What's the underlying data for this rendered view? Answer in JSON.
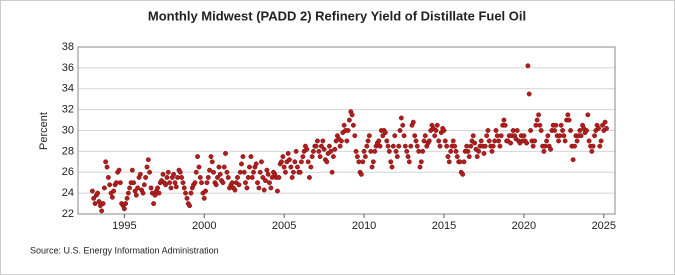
{
  "chart_data": {
    "type": "scatter",
    "title": "Monthly Midwest (PADD 2) Refinery Yield of Distillate Fuel Oil",
    "y_label": "Percent",
    "source": "Source: U.S. Energy Information Administration",
    "xlim": [
      1992.1,
      2025.7
    ],
    "xticks": [
      1995,
      2000,
      2005,
      2010,
      2015,
      2020,
      2025
    ],
    "ylim": [
      22,
      38
    ],
    "yticks": [
      22,
      24,
      26,
      28,
      30,
      32,
      34,
      36,
      38
    ],
    "grid": true,
    "series": [
      {
        "name": "Distillate Fuel Oil",
        "color": "#b01e1e",
        "x": [
          1993,
          1993.08,
          1993.17,
          1993.25,
          1993.33,
          1993.42,
          1993.5,
          1993.58,
          1993.67,
          1993.75,
          1993.83,
          1993.92,
          1994,
          1994.08,
          1994.17,
          1994.25,
          1994.33,
          1994.42,
          1994.5,
          1994.58,
          1994.67,
          1994.75,
          1994.83,
          1994.92,
          1995,
          1995.08,
          1995.17,
          1995.25,
          1995.33,
          1995.42,
          1995.5,
          1995.58,
          1995.67,
          1995.75,
          1995.83,
          1995.92,
          1996,
          1996.08,
          1996.17,
          1996.25,
          1996.33,
          1996.42,
          1996.5,
          1996.58,
          1996.67,
          1996.75,
          1996.83,
          1996.92,
          1997,
          1997.08,
          1997.17,
          1997.25,
          1997.33,
          1997.42,
          1997.5,
          1997.58,
          1997.67,
          1997.75,
          1997.83,
          1997.92,
          1998,
          1998.08,
          1998.17,
          1998.25,
          1998.33,
          1998.42,
          1998.5,
          1998.58,
          1998.67,
          1998.75,
          1998.83,
          1998.92,
          1999,
          1999.08,
          1999.17,
          1999.25,
          1999.33,
          1999.42,
          1999.5,
          1999.58,
          1999.67,
          1999.75,
          1999.83,
          1999.92,
          2000,
          2000.08,
          2000.17,
          2000.25,
          2000.33,
          2000.42,
          2000.5,
          2000.58,
          2000.67,
          2000.75,
          2000.83,
          2000.92,
          2001,
          2001.08,
          2001.17,
          2001.25,
          2001.33,
          2001.42,
          2001.5,
          2001.58,
          2001.67,
          2001.75,
          2001.83,
          2001.92,
          2002,
          2002.08,
          2002.17,
          2002.25,
          2002.33,
          2002.42,
          2002.5,
          2002.58,
          2002.67,
          2002.75,
          2002.83,
          2002.92,
          2003,
          2003.08,
          2003.17,
          2003.25,
          2003.33,
          2003.42,
          2003.5,
          2003.58,
          2003.67,
          2003.75,
          2003.83,
          2003.92,
          2004,
          2004.08,
          2004.17,
          2004.25,
          2004.33,
          2004.42,
          2004.5,
          2004.58,
          2004.67,
          2004.75,
          2004.83,
          2004.92,
          2005,
          2005.08,
          2005.17,
          2005.25,
          2005.33,
          2005.42,
          2005.5,
          2005.58,
          2005.67,
          2005.75,
          2005.83,
          2005.92,
          2006,
          2006.08,
          2006.17,
          2006.25,
          2006.33,
          2006.42,
          2006.5,
          2006.58,
          2006.67,
          2006.75,
          2006.83,
          2006.92,
          2007,
          2007.08,
          2007.17,
          2007.25,
          2007.33,
          2007.42,
          2007.5,
          2007.58,
          2007.67,
          2007.75,
          2007.83,
          2007.92,
          2008,
          2008.08,
          2008.17,
          2008.25,
          2008.33,
          2008.42,
          2008.5,
          2008.58,
          2008.67,
          2008.75,
          2008.83,
          2008.92,
          2009,
          2009.08,
          2009.17,
          2009.25,
          2009.33,
          2009.42,
          2009.5,
          2009.58,
          2009.67,
          2009.75,
          2009.83,
          2009.92,
          2010,
          2010.08,
          2010.17,
          2010.25,
          2010.33,
          2010.42,
          2010.5,
          2010.58,
          2010.67,
          2010.75,
          2010.83,
          2010.92,
          2011,
          2011.08,
          2011.17,
          2011.25,
          2011.33,
          2011.42,
          2011.5,
          2011.58,
          2011.67,
          2011.75,
          2011.83,
          2011.92,
          2012,
          2012.08,
          2012.17,
          2012.25,
          2012.33,
          2012.42,
          2012.5,
          2012.58,
          2012.67,
          2012.75,
          2012.83,
          2012.92,
          2013,
          2013.08,
          2013.17,
          2013.25,
          2013.33,
          2013.42,
          2013.5,
          2013.58,
          2013.67,
          2013.75,
          2013.83,
          2013.92,
          2014,
          2014.08,
          2014.17,
          2014.25,
          2014.33,
          2014.42,
          2014.5,
          2014.58,
          2014.67,
          2014.75,
          2014.83,
          2014.92,
          2015,
          2015.08,
          2015.17,
          2015.25,
          2015.33,
          2015.42,
          2015.5,
          2015.58,
          2015.67,
          2015.75,
          2015.83,
          2015.92,
          2016,
          2016.08,
          2016.17,
          2016.25,
          2016.33,
          2016.42,
          2016.5,
          2016.58,
          2016.67,
          2016.75,
          2016.83,
          2016.92,
          2017,
          2017.08,
          2017.17,
          2017.25,
          2017.33,
          2017.42,
          2017.5,
          2017.58,
          2017.67,
          2017.75,
          2017.83,
          2017.92,
          2018,
          2018.08,
          2018.17,
          2018.25,
          2018.33,
          2018.42,
          2018.5,
          2018.58,
          2018.67,
          2018.75,
          2018.83,
          2018.92,
          2019,
          2019.08,
          2019.17,
          2019.25,
          2019.33,
          2019.42,
          2019.5,
          2019.58,
          2019.67,
          2019.75,
          2019.83,
          2019.92,
          2020,
          2020.08,
          2020.17,
          2020.25,
          2020.33,
          2020.42,
          2020.5,
          2020.58,
          2020.67,
          2020.75,
          2020.83,
          2020.92,
          2021,
          2021.08,
          2021.17,
          2021.25,
          2021.33,
          2021.42,
          2021.5,
          2021.58,
          2021.67,
          2021.75,
          2021.83,
          2021.92,
          2022,
          2022.08,
          2022.17,
          2022.25,
          2022.33,
          2022.42,
          2022.5,
          2022.58,
          2022.67,
          2022.75,
          2022.83,
          2022.92,
          2023,
          2023.08,
          2023.17,
          2023.25,
          2023.33,
          2023.42,
          2023.5,
          2023.58,
          2023.67,
          2023.75,
          2023.83,
          2023.92,
          2024,
          2024.08,
          2024.17,
          2024.25,
          2024.33,
          2024.42,
          2024.5,
          2024.58,
          2024.67,
          2024.75,
          2024.83,
          2024.92,
          2025,
          2025.08,
          2025.17
        ],
        "values": [
          24.2,
          23.5,
          23.0,
          23.8,
          24.0,
          23.2,
          22.8,
          22.3,
          23.0,
          24.5,
          27.0,
          26.5,
          25.5,
          24.8,
          24.0,
          23.6,
          24.2,
          24.8,
          25.0,
          26.0,
          26.2,
          25.0,
          23.0,
          22.8,
          22.5,
          23.0,
          23.5,
          24.0,
          24.5,
          25.0,
          26.2,
          25.0,
          24.2,
          23.8,
          24.5,
          25.5,
          25.8,
          24.3,
          24.0,
          24.8,
          25.5,
          26.5,
          27.2,
          26.0,
          24.5,
          24.0,
          23.0,
          23.8,
          24.2,
          24.5,
          24.0,
          25.0,
          25.2,
          25.8,
          25.0,
          24.8,
          25.5,
          26.0,
          25.0,
          24.5,
          25.5,
          25.8,
          25.0,
          24.6,
          25.5,
          26.2,
          26.0,
          25.5,
          25.0,
          24.5,
          24.0,
          23.5,
          23.0,
          22.8,
          24.0,
          24.5,
          24.8,
          25.0,
          26.0,
          27.5,
          26.5,
          25.5,
          25.0,
          24.0,
          23.5,
          24.2,
          25.0,
          25.5,
          26.2,
          27.5,
          27.0,
          26.0,
          25.0,
          24.8,
          25.5,
          26.5,
          25.8,
          25.2,
          25.0,
          26.5,
          27.8,
          26.0,
          25.5,
          24.5,
          24.8,
          25.0,
          24.5,
          24.3,
          25.0,
          25.5,
          24.8,
          26.0,
          26.8,
          27.5,
          26.0,
          25.0,
          24.5,
          25.5,
          26.5,
          27.5,
          25.5,
          26.0,
          26.5,
          26.8,
          25.0,
          24.5,
          26.0,
          27.0,
          25.5,
          24.3,
          25.2,
          26.2,
          25.8,
          25.0,
          24.5,
          25.5,
          26.0,
          25.8,
          25.5,
          24.2,
          25.5,
          26.8,
          27.0,
          27.5,
          26.5,
          26.0,
          27.0,
          27.8,
          27.2,
          26.5,
          25.5,
          26.0,
          27.0,
          28.0,
          26.5,
          26.0,
          26.0,
          27.0,
          27.5,
          28.0,
          28.5,
          28.2,
          27.0,
          25.5,
          26.5,
          27.5,
          28.0,
          28.5,
          28.5,
          29.0,
          28.0,
          27.5,
          28.5,
          29.0,
          28.2,
          27.2,
          27.0,
          27.8,
          28.5,
          28.0,
          26.0,
          27.5,
          28.2,
          29.0,
          29.5,
          29.2,
          28.5,
          29.0,
          29.8,
          30.5,
          30.0,
          29.0,
          30.0,
          31.0,
          31.8,
          31.5,
          30.5,
          29.5,
          28.0,
          27.5,
          27.0,
          26.0,
          25.8,
          27.0,
          28.0,
          27.5,
          28.5,
          29.0,
          29.5,
          28.0,
          26.5,
          27.0,
          28.0,
          28.5,
          28.8,
          29.0,
          28.5,
          30.0,
          29.5,
          30.0,
          29.8,
          29.0,
          28.5,
          28.0,
          27.0,
          26.5,
          28.5,
          29.5,
          28.0,
          27.5,
          28.5,
          30.0,
          31.2,
          30.5,
          29.5,
          28.5,
          28.0,
          27.5,
          27.0,
          28.5,
          30.5,
          30.8,
          29.5,
          29.0,
          28.5,
          28.0,
          26.5,
          27.0,
          28.0,
          29.0,
          29.5,
          28.5,
          28.8,
          29.0,
          30.0,
          30.5,
          30.2,
          29.5,
          30.0,
          30.5,
          29.0,
          28.5,
          29.8,
          30.2,
          30.0,
          29.0,
          28.5,
          27.5,
          27.0,
          28.0,
          28.5,
          29.0,
          28.5,
          28.0,
          27.5,
          27.0,
          27.0,
          26.0,
          25.8,
          27.0,
          28.0,
          28.5,
          28.0,
          27.5,
          28.5,
          29.0,
          29.5,
          28.8,
          28.2,
          27.5,
          28.0,
          28.5,
          29.0,
          28.5,
          27.8,
          28.5,
          29.5,
          30.0,
          29.0,
          28.5,
          28.0,
          28.5,
          29.0,
          30.0,
          29.5,
          29.0,
          28.5,
          29.5,
          30.5,
          31.0,
          30.5,
          29.0,
          29.0,
          29.5,
          28.8,
          29.5,
          30.0,
          29.5,
          29.2,
          30.0,
          29.0,
          28.8,
          29.5,
          29.0,
          29.5,
          29.0,
          28.8,
          36.2,
          33.5,
          30.0,
          29.0,
          28.5,
          29.0,
          30.5,
          31.0,
          31.5,
          30.5,
          30.0,
          28.5,
          28.0,
          28.5,
          29.0,
          29.5,
          28.5,
          28.2,
          30.0,
          30.5,
          30.0,
          30.5,
          29.5,
          29.0,
          29.5,
          30.5,
          30.0,
          29.5,
          29.0,
          31.0,
          31.5,
          31.0,
          30.0,
          28.5,
          27.2,
          28.5,
          29.5,
          29.0,
          29.5,
          30.0,
          29.5,
          30.5,
          30.2,
          29.8,
          30.0,
          31.5,
          29.0,
          28.5,
          28.0,
          28.5,
          29.5,
          30.0,
          30.5,
          30.2,
          28.5,
          29.0,
          30.5,
          30.0,
          30.8,
          30.2
        ]
      }
    ]
  }
}
